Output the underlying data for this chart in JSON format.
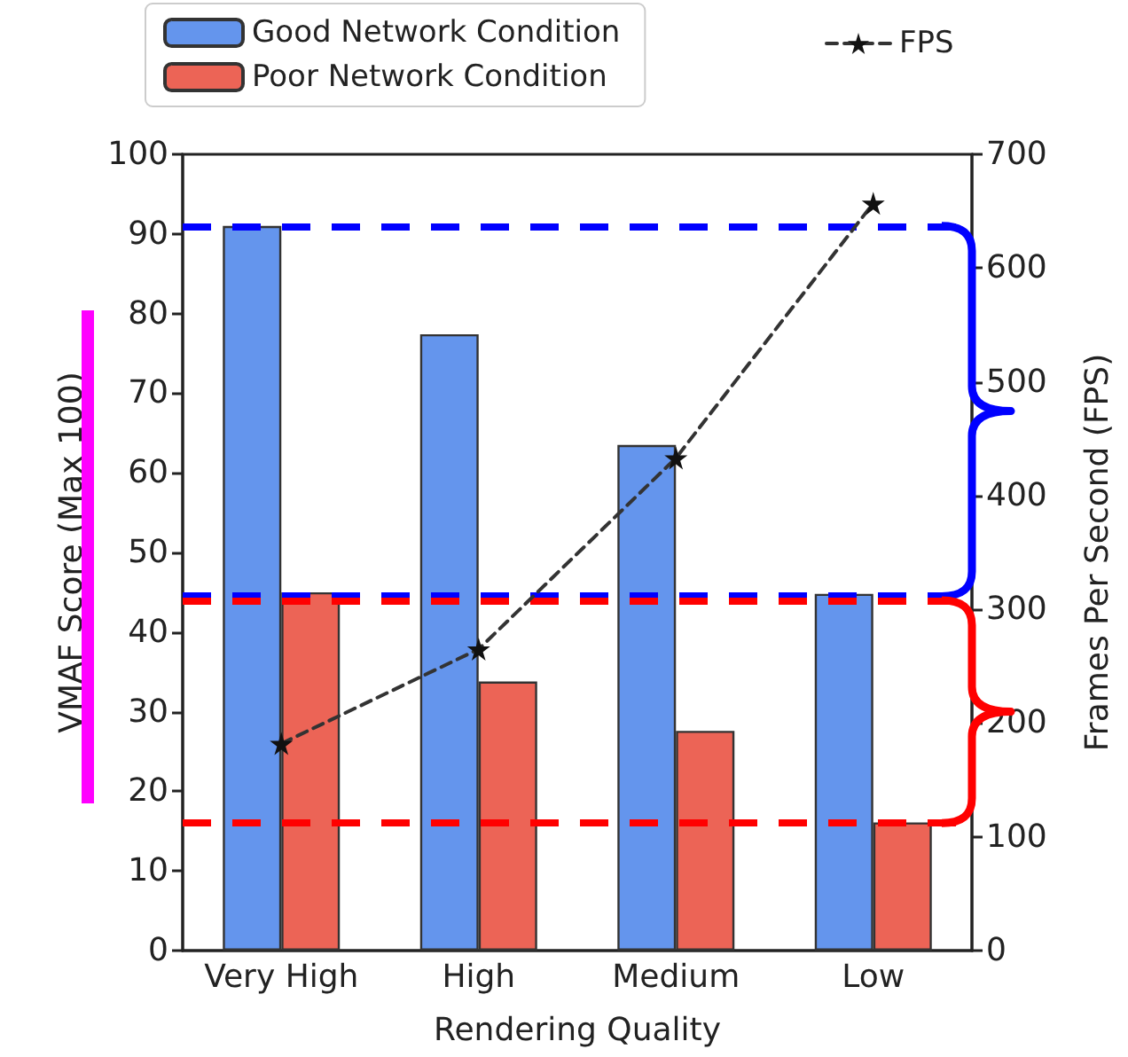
{
  "chart_data": {
    "type": "bar",
    "xlabel": "Rendering Quality",
    "ylabel": "VMAF Score (Max 100)",
    "y2label": "Frames Per Second (FPS)",
    "categories": [
      "Very High",
      "High",
      "Medium",
      "Low"
    ],
    "series": [
      {
        "name": "Good Network Condition",
        "color": "#6495ed",
        "values": [
          91,
          77.4,
          63.5,
          44.8
        ]
      },
      {
        "name": "Poor Network Condition",
        "color": "#ec6456",
        "values": [
          45,
          33.8,
          27.6,
          16.1
        ]
      },
      {
        "name": "FPS",
        "type": "line",
        "axis": "y2",
        "color": "#333333",
        "marker": "star",
        "line_style": "dashed",
        "values": [
          182,
          265,
          433,
          657
        ]
      }
    ],
    "ylim": [
      0,
      100
    ],
    "yticks": [
      0,
      10,
      20,
      30,
      40,
      50,
      60,
      70,
      80,
      90,
      100
    ],
    "y2lim": [
      0,
      700
    ],
    "y2ticks": [
      0,
      100,
      200,
      300,
      400,
      500,
      600,
      700
    ],
    "ref_lines": [
      {
        "axis": "y",
        "value": 91,
        "color": "#0000ff",
        "line_style": "dashed"
      },
      {
        "axis": "y",
        "value": 44.5,
        "color": "#0000ff",
        "line_style": "dashed"
      },
      {
        "axis": "y",
        "value": 44,
        "color": "#ff0000",
        "line_style": "dashed"
      },
      {
        "axis": "y",
        "value": 16,
        "color": "#ff0000",
        "line_style": "dashed"
      }
    ],
    "grid": false,
    "legend": "top"
  }
}
